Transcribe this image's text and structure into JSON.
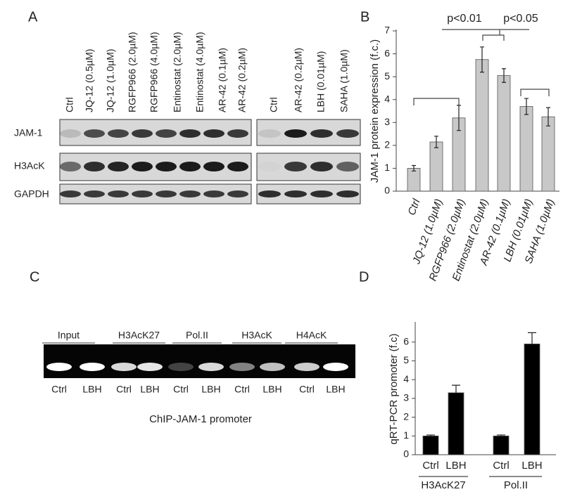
{
  "panel_labels": [
    "A",
    "B",
    "C",
    "D"
  ],
  "blot_a": {
    "lanes_left": [
      "Ctrl",
      "JQ-12 (0.5µM)",
      "JQ-12 (1.0µM)",
      "RGFP966 (2.0µM)",
      "RGFP966 (4.0µM)",
      "Entinostat (2.0µM)",
      "Entinostat (4.0µM)",
      "AR-42 (0.1µM)",
      "AR-42 (0.2µM)"
    ],
    "lanes_right": [
      "Ctrl",
      "AR-42 (0.2µM)",
      "LBH (0.01µM)",
      "SAHA (1.0µM)"
    ],
    "rows": [
      "JAM-1",
      "H3AcK",
      "GAPDH"
    ]
  },
  "gel_c": {
    "groups": [
      "Input",
      "H3AcK27",
      "Pol.II",
      "H3AcK",
      "H4AcK"
    ],
    "lanes": [
      "Ctrl",
      "LBH",
      "Ctrl",
      "LBH",
      "Ctrl",
      "LBH",
      "Ctrl",
      "LBH",
      "Ctrl",
      "LBH"
    ],
    "caption": "ChIP-JAM-1 promoter"
  },
  "chart_data": [
    {
      "type": "bar",
      "y_label": "JAM-1 protein expression (f.c.)",
      "categories": [
        "Ctrl",
        "JQ-12 (1.0µM)",
        "RGFP966 (2.0µM)",
        "Entinostat (2.0µM)",
        "AR-42 (0.1µM)",
        "LBH (0.01µM)",
        "SAHA (1.0µM)"
      ],
      "values": [
        1.0,
        2.15,
        3.2,
        5.75,
        5.05,
        3.7,
        3.25
      ],
      "errors": [
        0.12,
        0.25,
        0.55,
        0.55,
        0.3,
        0.35,
        0.4
      ],
      "color": "#c8c8c8",
      "ylim": [
        0,
        7
      ],
      "yticks": [
        0,
        1,
        2,
        3,
        4,
        5,
        6,
        7
      ],
      "annotations": [
        "p<0.01",
        "p<0.05"
      ]
    },
    {
      "type": "bar",
      "y_label": "qRT-PCR promoter (f.c)",
      "categories": [
        "Ctrl",
        "LBH",
        "Ctrl",
        "LBH"
      ],
      "groups": [
        "H3AcK27",
        "Pol.II"
      ],
      "values": [
        1.0,
        3.3,
        1.0,
        5.9
      ],
      "errors": [
        0.05,
        0.4,
        0.05,
        0.6
      ],
      "color": "#000000",
      "ylim": [
        0,
        7
      ],
      "yticks": [
        0,
        1,
        2,
        3,
        4,
        5,
        6
      ]
    }
  ]
}
